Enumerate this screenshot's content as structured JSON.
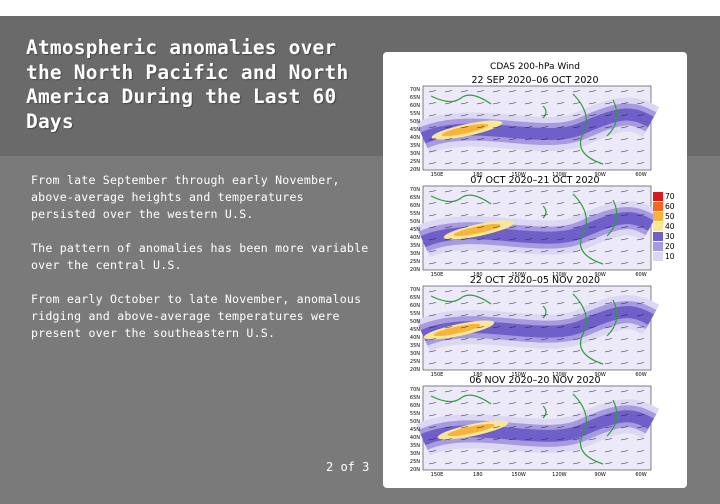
{
  "slide": {
    "title": "Atmospheric anomalies over the North Pacific and North America During the Last 60 Days",
    "bullets": [
      "From late September through early November, above-average heights and temperatures persisted over the western U.S.",
      "The pattern of anomalies has been more variable over the central U.S.",
      "From early October to late November, anomalous ridging and above-average temperatures were present over the southeastern U.S."
    ],
    "page_number": "2 of 3"
  },
  "figure": {
    "header": "CDAS 200-hPa Wind",
    "panels": [
      {
        "title": "22 SEP 2020–06 OCT 2020"
      },
      {
        "title": "07 OCT 2020–21 OCT 2020"
      },
      {
        "title": "22 OCT 2020–05 NOV 2020"
      },
      {
        "title": "06 NOV 2020–20 NOV 2020"
      }
    ],
    "lat_labels": [
      "70N",
      "65N",
      "60N",
      "55N",
      "50N",
      "45N",
      "40N",
      "35N",
      "30N",
      "25N",
      "20N"
    ],
    "lon_labels": [
      "150E",
      "180",
      "150W",
      "120W",
      "90W",
      "60W"
    ],
    "colorbar": [
      {
        "label": "70",
        "color": "#d71920"
      },
      {
        "label": "60",
        "color": "#f26a21"
      },
      {
        "label": "50",
        "color": "#f8b33b"
      },
      {
        "label": "40",
        "color": "#f6e79b"
      },
      {
        "label": "30",
        "color": "#6e5fc9"
      },
      {
        "label": "20",
        "color": "#a79ae0"
      },
      {
        "label": "10",
        "color": "#dcd7f3"
      }
    ]
  }
}
